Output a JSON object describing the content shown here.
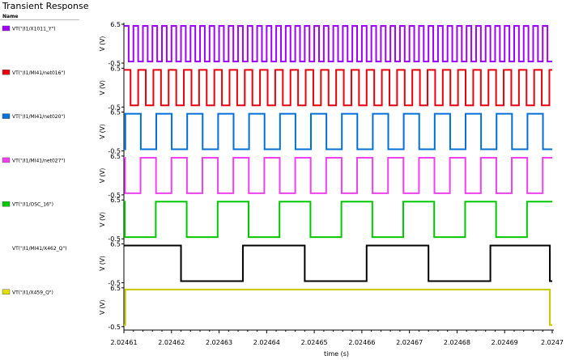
{
  "window": {
    "title": "Transient Response",
    "legend_header": "Name"
  },
  "colors": {
    "frame": "#000000",
    "grid": "#d0d0d0",
    "background": "#ffffff"
  },
  "chart_data": {
    "type": "line",
    "title": "Transient Response",
    "xlabel": "time (s)",
    "xlim": [
      2.02461,
      2.0247
    ],
    "x_ticks": [
      "2.02461",
      "2.02462",
      "2.02463",
      "2.02464",
      "2.02465",
      "2.02466",
      "2.02467",
      "2.02468",
      "2.02469",
      "2.0247"
    ],
    "x_tick_values": [
      2.02461,
      2.02462,
      2.02463,
      2.02464,
      2.02465,
      2.02466,
      2.02467,
      2.02468,
      2.02469,
      2.0247
    ],
    "ylabel": "V (V)",
    "ylim": [
      -0.5,
      6.5
    ],
    "y_ticks": [
      "6.5",
      "-0.5"
    ],
    "legend_position": "left",
    "grid": false,
    "series": [
      {
        "name": "VT(\"/I1/X1011_Y\")",
        "color": "#a000ff",
        "swatch": "#a000ff",
        "kind": "square",
        "period": 2e-06,
        "phase": 2.02461,
        "duty": 0.5,
        "low": -0.2,
        "high": 6.2
      },
      {
        "name": "VT(\"/I1/MI41/net016\")",
        "color": "#e8000f",
        "swatch": "#e8000f",
        "kind": "square",
        "period": 3.2e-06,
        "phase": 2.0246098,
        "duty": 0.5,
        "low": -0.2,
        "high": 6.2
      },
      {
        "name": "VT(\"/I1/MI41/net020\")",
        "color": "#0070d8",
        "swatch": "#0070d8",
        "kind": "square",
        "period": 6.5e-06,
        "phase": 2.0246103,
        "duty": 0.5,
        "low": -0.2,
        "high": 6.2
      },
      {
        "name": "VT(\"/I1/MI41/net027\")",
        "color": "#f040f0",
        "swatch": "#f040f0",
        "kind": "square",
        "period": 6.5e-06,
        "phase": 2.0246135,
        "duty": 0.5,
        "low": -0.2,
        "high": 6.2
      },
      {
        "name": "VT(\"/I1/OSC_16\")",
        "color": "#00c800",
        "swatch": "#00c800",
        "kind": "square",
        "period": 1.3e-05,
        "phase": 2.0246167,
        "duty": 0.5,
        "low": -0.2,
        "high": 6.2
      },
      {
        "name": "VT(\"/I1/MI41/X462_Q\")",
        "color": "#000000",
        "swatch": "#ffffff",
        "kind": "square",
        "period": 2.6e-05,
        "phase": 2.024635,
        "duty": 0.5,
        "low": -0.2,
        "high": 6.2,
        "end_drop": 2.0246995
      },
      {
        "name": "VT(\"/I1/X459_Q\")",
        "color": "#c8c800",
        "swatch": "#e0e000",
        "kind": "pulse",
        "rise": 2.0246103,
        "fall": 2.0246995,
        "low": -0.2,
        "high": 6.2
      }
    ]
  }
}
